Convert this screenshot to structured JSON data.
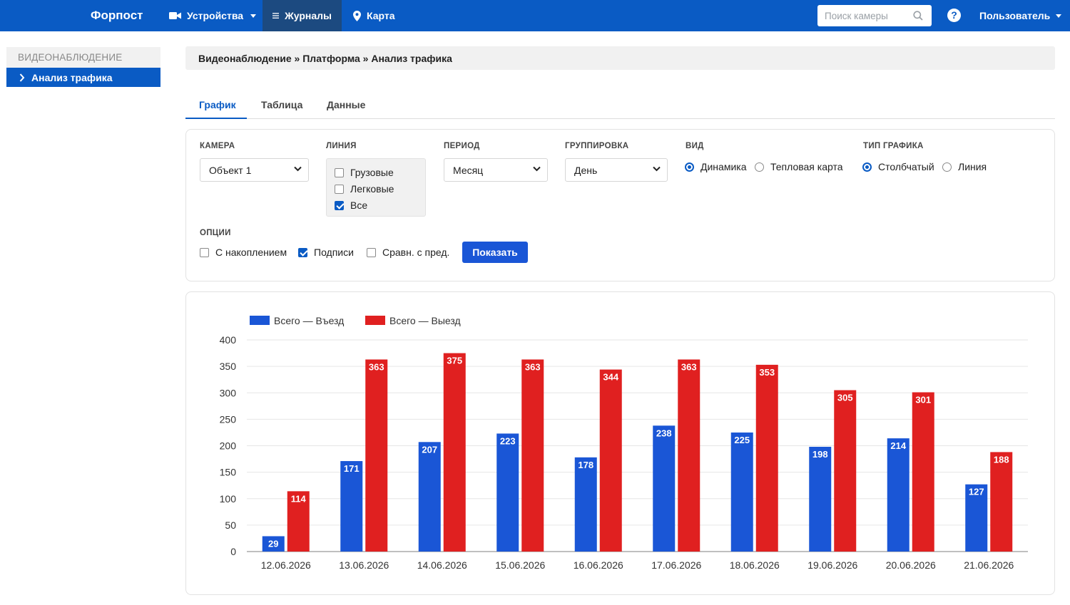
{
  "navbar": {
    "brand": "Форпост",
    "devices": "Устройства",
    "journals": "Журналы",
    "map": "Карта",
    "search_placeholder": "Поиск камеры",
    "help": "?",
    "user": "Пользователь"
  },
  "sidebar": {
    "header": "ВИДЕОНАБЛЮДЕНИЕ",
    "item": "Анализ трафика"
  },
  "breadcrumb": "Видеонаблюдение » Платформа » Анализ трафика",
  "tabs": [
    "График",
    "Таблица",
    "Данные"
  ],
  "filters": {
    "camera_label": "КАМЕРА",
    "camera_value": "Объект 1",
    "line_label": "ЛИНИЯ",
    "line_options": [
      {
        "label": "Грузовые",
        "checked": false
      },
      {
        "label": "Легковые",
        "checked": false
      },
      {
        "label": "Все",
        "checked": true
      }
    ],
    "period_label": "ПЕРИОД",
    "period_value": "Месяц",
    "grouping_label": "ГРУППИРОВКА",
    "grouping_value": "День",
    "view_label": "ВИД",
    "view_options": [
      {
        "label": "Динамика",
        "selected": true
      },
      {
        "label": "Тепловая карта",
        "selected": false
      }
    ],
    "chart_type_label": "ТИП ГРАФИКА",
    "chart_type_options": [
      {
        "label": "Столбчатый",
        "selected": true
      },
      {
        "label": "Линия",
        "selected": false
      }
    ],
    "options_label": "ОПЦИИ",
    "options": [
      {
        "label": "С накоплением",
        "checked": false
      },
      {
        "label": "Подписи",
        "checked": true
      },
      {
        "label": "Сравн. с пред.",
        "checked": false
      }
    ],
    "show_button": "Показать"
  },
  "chart_data": {
    "type": "bar",
    "categories": [
      "12.06.2026",
      "13.06.2026",
      "14.06.2026",
      "15.06.2026",
      "16.06.2026",
      "17.06.2026",
      "18.06.2026",
      "19.06.2026",
      "20.06.2026",
      "21.06.2026"
    ],
    "series": [
      {
        "name": "Всего — Въезд",
        "color": "#1a56d6",
        "values": [
          29,
          171,
          207,
          223,
          178,
          238,
          225,
          198,
          214,
          127
        ]
      },
      {
        "name": "Всего — Выезд",
        "color": "#e02020",
        "values": [
          114,
          363,
          375,
          363,
          344,
          363,
          353,
          305,
          301,
          188
        ]
      }
    ],
    "ylim": [
      0,
      400
    ],
    "yticks": [
      0,
      50,
      100,
      150,
      200,
      250,
      300,
      350,
      400
    ],
    "grid": true,
    "legend": "top-left",
    "data_labels": true
  },
  "colors": {
    "navbar": "#0a5bc4",
    "accent": "#1a56d6",
    "series_in": "#1a56d6",
    "series_out": "#e02020"
  }
}
